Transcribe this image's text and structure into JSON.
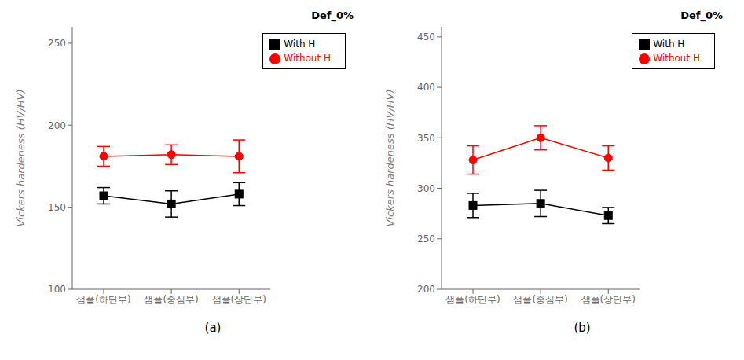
{
  "chart_data": [
    {
      "type": "line",
      "title": "(a)",
      "annotations": [
        "Def_0%"
      ],
      "ylabel": "Vickers hardeness (HV/HV)",
      "categories": [
        "샘플(하단부)",
        "샘플(중심부)",
        "샘플(상단부)"
      ],
      "series": [
        {
          "name": "With H",
          "color": "#000000",
          "marker": "square",
          "values": [
            157,
            152,
            158
          ],
          "errors": [
            5,
            8,
            7
          ]
        },
        {
          "name": "Without H",
          "color": "#ff0000",
          "marker": "circle",
          "values": [
            181,
            182,
            181
          ],
          "errors": [
            6,
            6,
            10
          ]
        }
      ],
      "ylim": [
        100,
        260
      ],
      "yticks": [
        100,
        150,
        200,
        250
      ],
      "grid": false,
      "legend": "upper right"
    },
    {
      "type": "line",
      "title": "(b)",
      "annotations": [
        "Def_0%"
      ],
      "ylabel": "Vickers hardeness (HV/HV)",
      "categories": [
        "샘플(하단부)",
        "샘플(중심부)",
        "샘플(상단부)"
      ],
      "series": [
        {
          "name": "With H",
          "color": "#000000",
          "marker": "square",
          "values": [
            283,
            285,
            273
          ],
          "errors": [
            12,
            13,
            8
          ]
        },
        {
          "name": "Without H",
          "color": "#ff0000",
          "marker": "circle",
          "values": [
            328,
            350,
            330
          ],
          "errors": [
            14,
            12,
            12
          ]
        }
      ],
      "ylim": [
        200,
        460
      ],
      "yticks": [
        200,
        250,
        300,
        350,
        400,
        450
      ],
      "grid": false,
      "legend": "upper right"
    }
  ]
}
